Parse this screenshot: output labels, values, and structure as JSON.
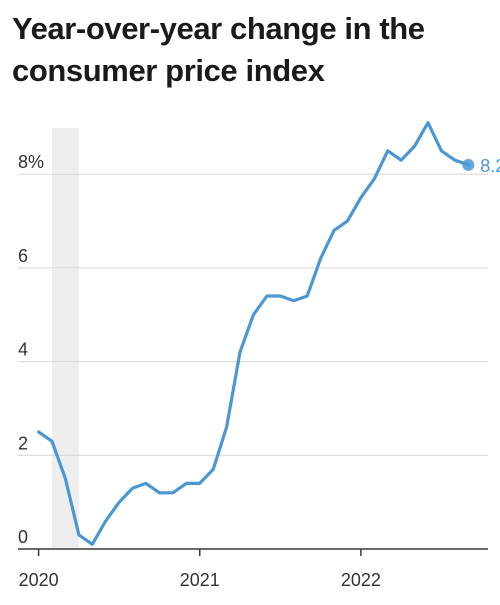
{
  "chart_data": {
    "type": "line",
    "title": "Year-over-year change in the consumer price index",
    "xlabel": "",
    "ylabel": "",
    "ylim": [
      0,
      9.2
    ],
    "xlim": [
      "2019-11-15",
      "2022-10-15"
    ],
    "y_ticks": [
      {
        "value": 0,
        "label": "0"
      },
      {
        "value": 2,
        "label": "2"
      },
      {
        "value": 4,
        "label": "4"
      },
      {
        "value": 6,
        "label": "6"
      },
      {
        "value": 8,
        "label": "8%"
      }
    ],
    "x_ticks": [
      {
        "value": "2020-01",
        "label": "2020"
      },
      {
        "value": "2021-01",
        "label": "2021"
      },
      {
        "value": "2022-01",
        "label": "2022"
      }
    ],
    "grid": true,
    "shaded_period": {
      "start": "2020-02",
      "end": "2020-04"
    },
    "end_label": "8.2",
    "colors": {
      "line": "#4a97d4",
      "grid": "#d6d6d6",
      "shade": "#eeeeee",
      "axis": "#3a3a3a",
      "tick_text": "#333333"
    },
    "series": [
      {
        "x": [
          "2020-01",
          "2020-02",
          "2020-03",
          "2020-04",
          "2020-05",
          "2020-06",
          "2020-07",
          "2020-08",
          "2020-09",
          "2020-10",
          "2020-11",
          "2020-12",
          "2021-01",
          "2021-02",
          "2021-03",
          "2021-04",
          "2021-05",
          "2021-06",
          "2021-07",
          "2021-08",
          "2021-09",
          "2021-10",
          "2021-11",
          "2021-12",
          "2022-01",
          "2022-02",
          "2022-03",
          "2022-04",
          "2022-05",
          "2022-06",
          "2022-07",
          "2022-08",
          "2022-09"
        ],
        "values": [
          2.5,
          2.3,
          1.5,
          0.3,
          0.1,
          0.6,
          1.0,
          1.3,
          1.4,
          1.2,
          1.2,
          1.4,
          1.4,
          1.7,
          2.6,
          4.2,
          5.0,
          5.4,
          5.4,
          5.3,
          5.4,
          6.2,
          6.8,
          7.0,
          7.5,
          7.9,
          8.5,
          8.3,
          8.6,
          9.1,
          8.5,
          8.3,
          8.2
        ]
      }
    ]
  }
}
